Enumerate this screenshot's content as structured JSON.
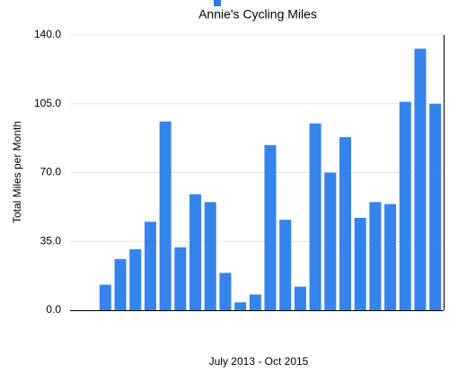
{
  "chart_data": {
    "type": "bar",
    "title": "Annie's Cycling Miles",
    "x_label": "July 2013 - Oct 2015",
    "y_label": "Total Miles per Month",
    "categories": [
      null,
      null,
      null,
      null,
      null,
      null,
      null,
      null,
      null,
      null,
      null,
      null,
      null,
      null,
      null,
      null,
      null,
      null,
      null,
      null,
      null,
      null,
      null
    ],
    "values": [
      13,
      26,
      31,
      45,
      96,
      32,
      59,
      55,
      19,
      4,
      8,
      84,
      46,
      12,
      95,
      70,
      88,
      47,
      55,
      54,
      106,
      133,
      105
    ],
    "color": "#3584ec",
    "ylim": [
      0,
      140
    ],
    "yticks": [
      {
        "value": 0,
        "label": "0.0"
      },
      {
        "value": 35,
        "label": "35.0"
      },
      {
        "value": 70,
        "label": "70.0"
      },
      {
        "value": 105,
        "label": "105.0"
      },
      {
        "value": 140,
        "label": "140.0"
      }
    ],
    "grid": true
  }
}
